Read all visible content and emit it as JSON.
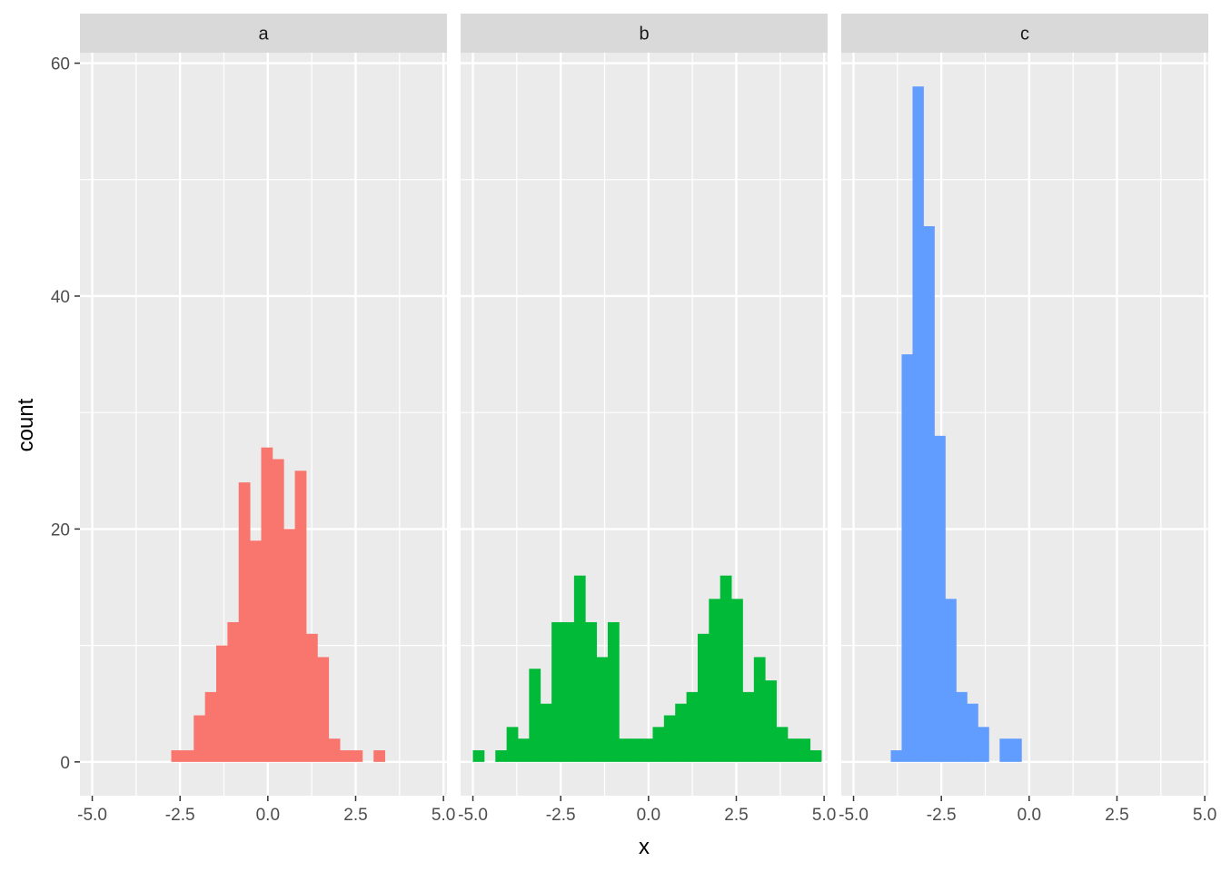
{
  "chart_data": {
    "type": "bar",
    "subtype": "histogram-faceted",
    "xlabel": "x",
    "ylabel": "count",
    "xlim": [
      -5.35,
      5.1
    ],
    "ylim": [
      -2.9,
      60.9
    ],
    "x_ticks": [
      -5.0,
      -2.5,
      0.0,
      2.5,
      5.0
    ],
    "x_tick_labels": [
      "-5.0",
      "-2.5",
      "0.0",
      "2.5",
      "5.0"
    ],
    "y_ticks": [
      0,
      20,
      40,
      60
    ],
    "y_tick_labels": [
      "0",
      "20",
      "40",
      "60"
    ],
    "grid": true,
    "legend": "none",
    "facets": [
      {
        "label": "a",
        "color": "#F8766D",
        "bins": [
          {
            "x0": -2.75,
            "x1": -2.43,
            "count": 1
          },
          {
            "x0": -2.43,
            "x1": -2.11,
            "count": 1
          },
          {
            "x0": -2.11,
            "x1": -1.79,
            "count": 4
          },
          {
            "x0": -1.79,
            "x1": -1.47,
            "count": 6
          },
          {
            "x0": -1.47,
            "x1": -1.15,
            "count": 10
          },
          {
            "x0": -1.15,
            "x1": -0.83,
            "count": 12
          },
          {
            "x0": -0.83,
            "x1": -0.51,
            "count": 24
          },
          {
            "x0": -0.51,
            "x1": -0.19,
            "count": 19
          },
          {
            "x0": -0.19,
            "x1": 0.13,
            "count": 27
          },
          {
            "x0": 0.13,
            "x1": 0.45,
            "count": 26
          },
          {
            "x0": 0.45,
            "x1": 0.77,
            "count": 20
          },
          {
            "x0": 0.77,
            "x1": 1.09,
            "count": 25
          },
          {
            "x0": 1.09,
            "x1": 1.41,
            "count": 11
          },
          {
            "x0": 1.41,
            "x1": 1.73,
            "count": 9
          },
          {
            "x0": 1.73,
            "x1": 2.05,
            "count": 2
          },
          {
            "x0": 2.05,
            "x1": 2.37,
            "count": 1
          },
          {
            "x0": 2.37,
            "x1": 2.69,
            "count": 1
          },
          {
            "x0": 3.01,
            "x1": 3.33,
            "count": 1
          }
        ]
      },
      {
        "label": "b",
        "color": "#00BA38",
        "bins": [
          {
            "x0": -5.0,
            "x1": -4.68,
            "count": 1
          },
          {
            "x0": -4.36,
            "x1": -4.04,
            "count": 1
          },
          {
            "x0": -4.04,
            "x1": -3.72,
            "count": 3
          },
          {
            "x0": -3.72,
            "x1": -3.4,
            "count": 2
          },
          {
            "x0": -3.4,
            "x1": -3.08,
            "count": 8
          },
          {
            "x0": -3.08,
            "x1": -2.76,
            "count": 5
          },
          {
            "x0": -2.76,
            "x1": -2.44,
            "count": 12
          },
          {
            "x0": -2.44,
            "x1": -2.12,
            "count": 12
          },
          {
            "x0": -2.12,
            "x1": -1.8,
            "count": 16
          },
          {
            "x0": -1.8,
            "x1": -1.48,
            "count": 12
          },
          {
            "x0": -1.48,
            "x1": -1.16,
            "count": 9
          },
          {
            "x0": -1.16,
            "x1": -0.84,
            "count": 12
          },
          {
            "x0": -0.84,
            "x1": -0.52,
            "count": 2
          },
          {
            "x0": -0.52,
            "x1": -0.2,
            "count": 2
          },
          {
            "x0": -0.2,
            "x1": 0.12,
            "count": 2
          },
          {
            "x0": 0.12,
            "x1": 0.44,
            "count": 3
          },
          {
            "x0": 0.44,
            "x1": 0.76,
            "count": 4
          },
          {
            "x0": 0.76,
            "x1": 1.08,
            "count": 5
          },
          {
            "x0": 1.08,
            "x1": 1.4,
            "count": 6
          },
          {
            "x0": 1.4,
            "x1": 1.72,
            "count": 11
          },
          {
            "x0": 1.72,
            "x1": 2.04,
            "count": 14
          },
          {
            "x0": 2.04,
            "x1": 2.36,
            "count": 16
          },
          {
            "x0": 2.36,
            "x1": 2.68,
            "count": 14
          },
          {
            "x0": 2.68,
            "x1": 3.0,
            "count": 6
          },
          {
            "x0": 3.0,
            "x1": 3.32,
            "count": 9
          },
          {
            "x0": 3.32,
            "x1": 3.64,
            "count": 7
          },
          {
            "x0": 3.64,
            "x1": 3.96,
            "count": 3
          },
          {
            "x0": 3.96,
            "x1": 4.28,
            "count": 2
          },
          {
            "x0": 4.28,
            "x1": 4.6,
            "count": 2
          },
          {
            "x0": 4.6,
            "x1": 4.92,
            "count": 1
          }
        ]
      },
      {
        "label": "c",
        "color": "#619CFF",
        "bins": [
          {
            "x0": -3.94,
            "x1": -3.63,
            "count": 1
          },
          {
            "x0": -3.63,
            "x1": -3.32,
            "count": 35
          },
          {
            "x0": -3.32,
            "x1": -3.01,
            "count": 58
          },
          {
            "x0": -3.01,
            "x1": -2.7,
            "count": 46
          },
          {
            "x0": -2.7,
            "x1": -2.39,
            "count": 28
          },
          {
            "x0": -2.39,
            "x1": -2.08,
            "count": 14
          },
          {
            "x0": -2.08,
            "x1": -1.77,
            "count": 6
          },
          {
            "x0": -1.77,
            "x1": -1.46,
            "count": 5
          },
          {
            "x0": -1.46,
            "x1": -1.15,
            "count": 3
          },
          {
            "x0": -0.84,
            "x1": -0.53,
            "count": 2
          },
          {
            "x0": -0.53,
            "x1": -0.22,
            "count": 2
          }
        ]
      }
    ]
  },
  "colors": {
    "panel_background": "#EBEBEB",
    "strip_background": "#D9D9D9",
    "grid_line": "#FFFFFF",
    "tick_text": "#4D4D4D",
    "tick_mark": "#333333"
  }
}
